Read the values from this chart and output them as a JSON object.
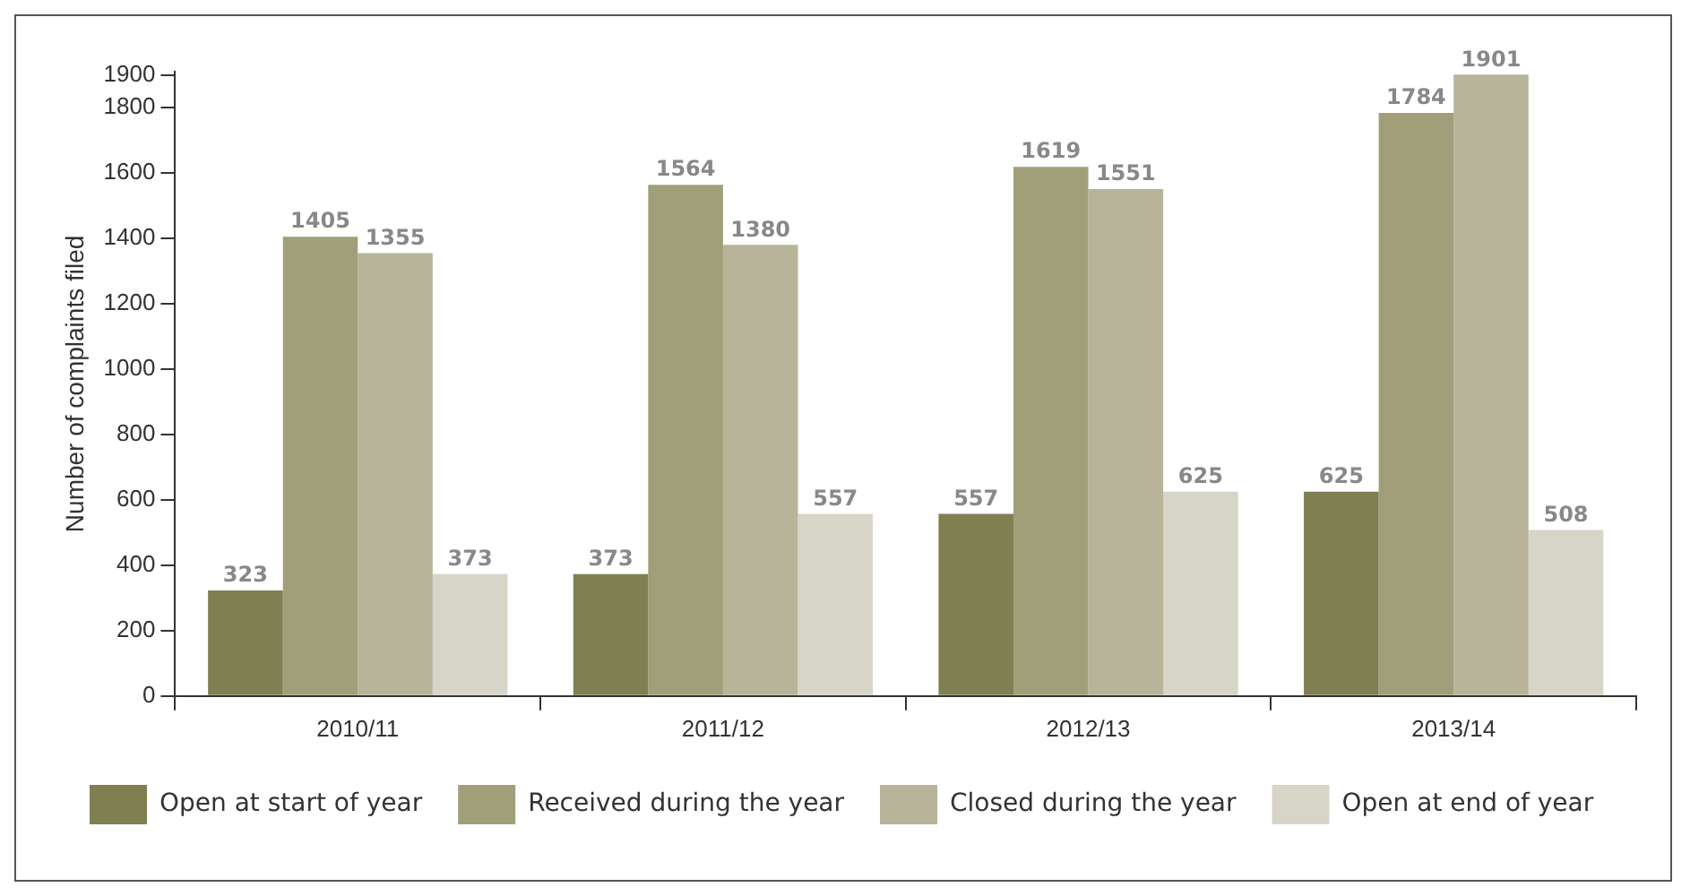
{
  "chart_data": {
    "type": "bar",
    "ylabel": "Number of complaints filed",
    "categories": [
      "2010/11",
      "2011/12",
      "2012/13",
      "2013/14"
    ],
    "series": [
      {
        "name": "Open at start of year",
        "color": "#807f52",
        "values": [
          323,
          373,
          557,
          625
        ]
      },
      {
        "name": "Received during the year",
        "color": "#a19f7a",
        "values": [
          1405,
          1564,
          1619,
          1784
        ]
      },
      {
        "name": "Closed during the year",
        "color": "#b8b49a",
        "values": [
          1355,
          1380,
          1551,
          1901
        ]
      },
      {
        "name": "Open at end of year",
        "color": "#d7d5c7",
        "values": [
          373,
          557,
          625,
          508
        ]
      }
    ],
    "ylim": [
      0,
      1910
    ],
    "yticks": [
      0,
      200,
      400,
      600,
      800,
      1000,
      1200,
      1400,
      1600,
      1800,
      1900
    ],
    "grid": false,
    "legend": "bottom",
    "data_labels": true
  }
}
